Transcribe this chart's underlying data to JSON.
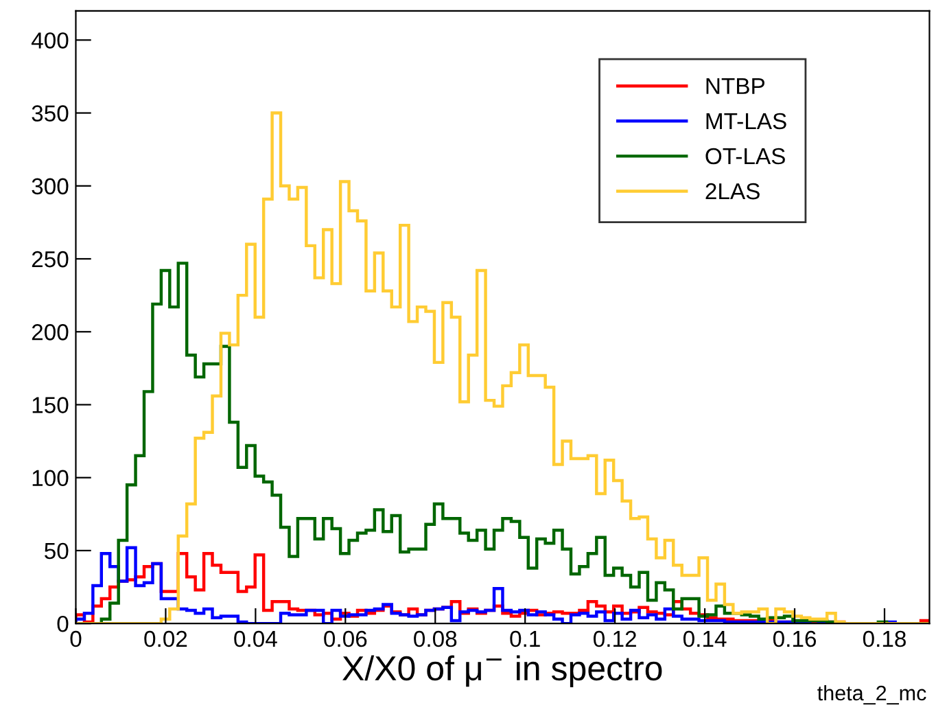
{
  "chart_data": {
    "type": "histogram",
    "xlabel": "X/X0 of μ$^{−}$ in spectro",
    "annotations": [
      "theta_2_mc"
    ],
    "bins": [
      0,
      0.0019,
      0.0038,
      0.0057,
      0.0076,
      0.0095,
      0.0114,
      0.0133,
      0.0152,
      0.0171,
      0.019,
      0.0209,
      0.0228,
      0.0247,
      0.0266,
      0.0285,
      0.0304,
      0.0323,
      0.0342,
      0.0361,
      0.038,
      0.0399,
      0.0418,
      0.0437,
      0.0456,
      0.0475,
      0.0494,
      0.0513,
      0.0532,
      0.0551,
      0.057,
      0.0589,
      0.0608,
      0.0627,
      0.0646,
      0.0665,
      0.0684,
      0.0703,
      0.0722,
      0.0741,
      0.076,
      0.0779,
      0.0798,
      0.0817,
      0.0836,
      0.0855,
      0.0874,
      0.0893,
      0.0912,
      0.0931,
      0.095,
      0.0969,
      0.0988,
      0.1007,
      0.1026,
      0.1045,
      0.1064,
      0.1083,
      0.1102,
      0.1121,
      0.114,
      0.1159,
      0.1178,
      0.1197,
      0.1216,
      0.1235,
      0.1254,
      0.1273,
      0.1292,
      0.1311,
      0.133,
      0.1349,
      0.1368,
      0.1387,
      0.1406,
      0.1425,
      0.1444,
      0.1463,
      0.1482,
      0.1501,
      0.152,
      0.1539,
      0.1558,
      0.1577,
      0.1596,
      0.1615,
      0.1634,
      0.1653,
      0.1672,
      0.1691,
      0.171,
      0.1729,
      0.1748,
      0.1767,
      0.1786,
      0.1805,
      0.1824,
      0.1843,
      0.1862,
      0.1881,
      0.19
    ],
    "series": [
      {
        "name": "NTBP",
        "color": "#ff0000",
        "values": [
          6,
          1,
          12,
          17,
          25,
          29,
          30,
          32,
          39,
          41,
          22,
          22,
          48,
          32,
          23,
          48,
          40,
          35,
          35,
          22,
          25,
          47,
          9,
          15,
          15,
          10,
          9,
          9,
          6,
          7,
          3,
          7,
          5,
          9,
          7,
          9,
          12,
          8,
          6,
          10,
          6,
          9,
          10,
          11,
          15,
          7,
          10,
          7,
          9,
          12,
          7,
          5,
          7,
          9,
          6,
          7,
          8,
          7,
          7,
          9,
          15,
          12,
          8,
          12,
          7,
          8,
          11,
          8,
          7,
          6,
          15,
          10,
          7,
          6,
          4,
          3,
          3,
          2,
          2,
          2,
          1,
          2,
          1,
          1,
          1,
          1,
          1,
          1,
          1,
          1,
          0,
          0,
          0,
          0,
          0,
          0,
          0,
          0,
          0,
          2
        ]
      },
      {
        "name": "MT-LAS",
        "color": "#0000ff",
        "values": [
          3,
          7,
          26,
          48,
          39,
          29,
          52,
          26,
          28,
          41,
          17,
          17,
          10,
          9,
          7,
          10,
          4,
          5,
          5,
          1,
          0,
          0,
          0,
          0,
          7,
          6,
          6,
          9,
          9,
          0,
          9,
          5,
          6,
          6,
          9,
          10,
          13,
          7,
          6,
          5,
          6,
          9,
          10,
          11,
          2,
          8,
          9,
          8,
          9,
          24,
          9,
          8,
          9,
          6,
          8,
          6,
          3,
          0,
          6,
          7,
          5,
          8,
          2,
          7,
          3,
          9,
          4,
          6,
          3,
          10,
          5,
          3,
          3,
          2,
          2,
          2,
          1,
          1,
          1,
          1,
          1,
          1,
          1,
          1,
          1,
          1,
          2,
          0,
          0,
          0,
          0,
          0,
          0,
          0,
          0,
          1,
          0,
          0,
          0,
          0
        ]
      },
      {
        "name": "OT-LAS",
        "color": "#006600",
        "values": [
          0,
          0,
          0,
          3,
          14,
          57,
          95,
          115,
          159,
          219,
          242,
          217,
          247,
          184,
          169,
          178,
          178,
          190,
          138,
          107,
          122,
          101,
          97,
          88,
          66,
          46,
          72,
          72,
          58,
          72,
          65,
          48,
          57,
          62,
          64,
          78,
          63,
          74,
          49,
          51,
          51,
          68,
          82,
          72,
          72,
          62,
          57,
          64,
          51,
          64,
          72,
          70,
          59,
          38,
          58,
          55,
          64,
          51,
          34,
          39,
          48,
          59,
          33,
          38,
          33,
          25,
          35,
          16,
          28,
          23,
          10,
          17,
          17,
          5,
          6,
          12,
          7,
          7,
          6,
          5,
          3,
          4,
          4,
          5,
          2,
          2,
          2,
          2,
          1,
          0,
          0,
          0,
          0,
          0,
          1,
          0,
          0,
          0,
          0,
          0
        ]
      },
      {
        "name": "2LAS",
        "color": "#ffcc33",
        "values": [
          0,
          0,
          0,
          0,
          0,
          0,
          0,
          0,
          0,
          0,
          3,
          10,
          60,
          82,
          127,
          131,
          156,
          199,
          191,
          225,
          260,
          210,
          291,
          350,
          300,
          291,
          299,
          259,
          237,
          270,
          233,
          303,
          283,
          276,
          228,
          254,
          228,
          217,
          273,
          207,
          217,
          214,
          179,
          220,
          210,
          152,
          184,
          242,
          153,
          149,
          163,
          172,
          191,
          170,
          170,
          162,
          109,
          125,
          113,
          113,
          115,
          89,
          112,
          98,
          84,
          72,
          73,
          58,
          45,
          57,
          40,
          33,
          33,
          45,
          16,
          27,
          13,
          7,
          8,
          8,
          10,
          0,
          10,
          8,
          5,
          4,
          3,
          3,
          7,
          1,
          0,
          0,
          0,
          0,
          0,
          0,
          0,
          0,
          0,
          0
        ]
      }
    ],
    "xlim": [
      0,
      0.19
    ],
    "ylim": [
      0,
      420
    ],
    "xticks": [
      0,
      0.02,
      0.04,
      0.06,
      0.08,
      0.1,
      0.12,
      0.14,
      0.16,
      0.18
    ],
    "yticks": [
      0,
      50,
      100,
      150,
      200,
      250,
      300,
      350,
      400
    ],
    "grid": false,
    "legend": "top right"
  }
}
